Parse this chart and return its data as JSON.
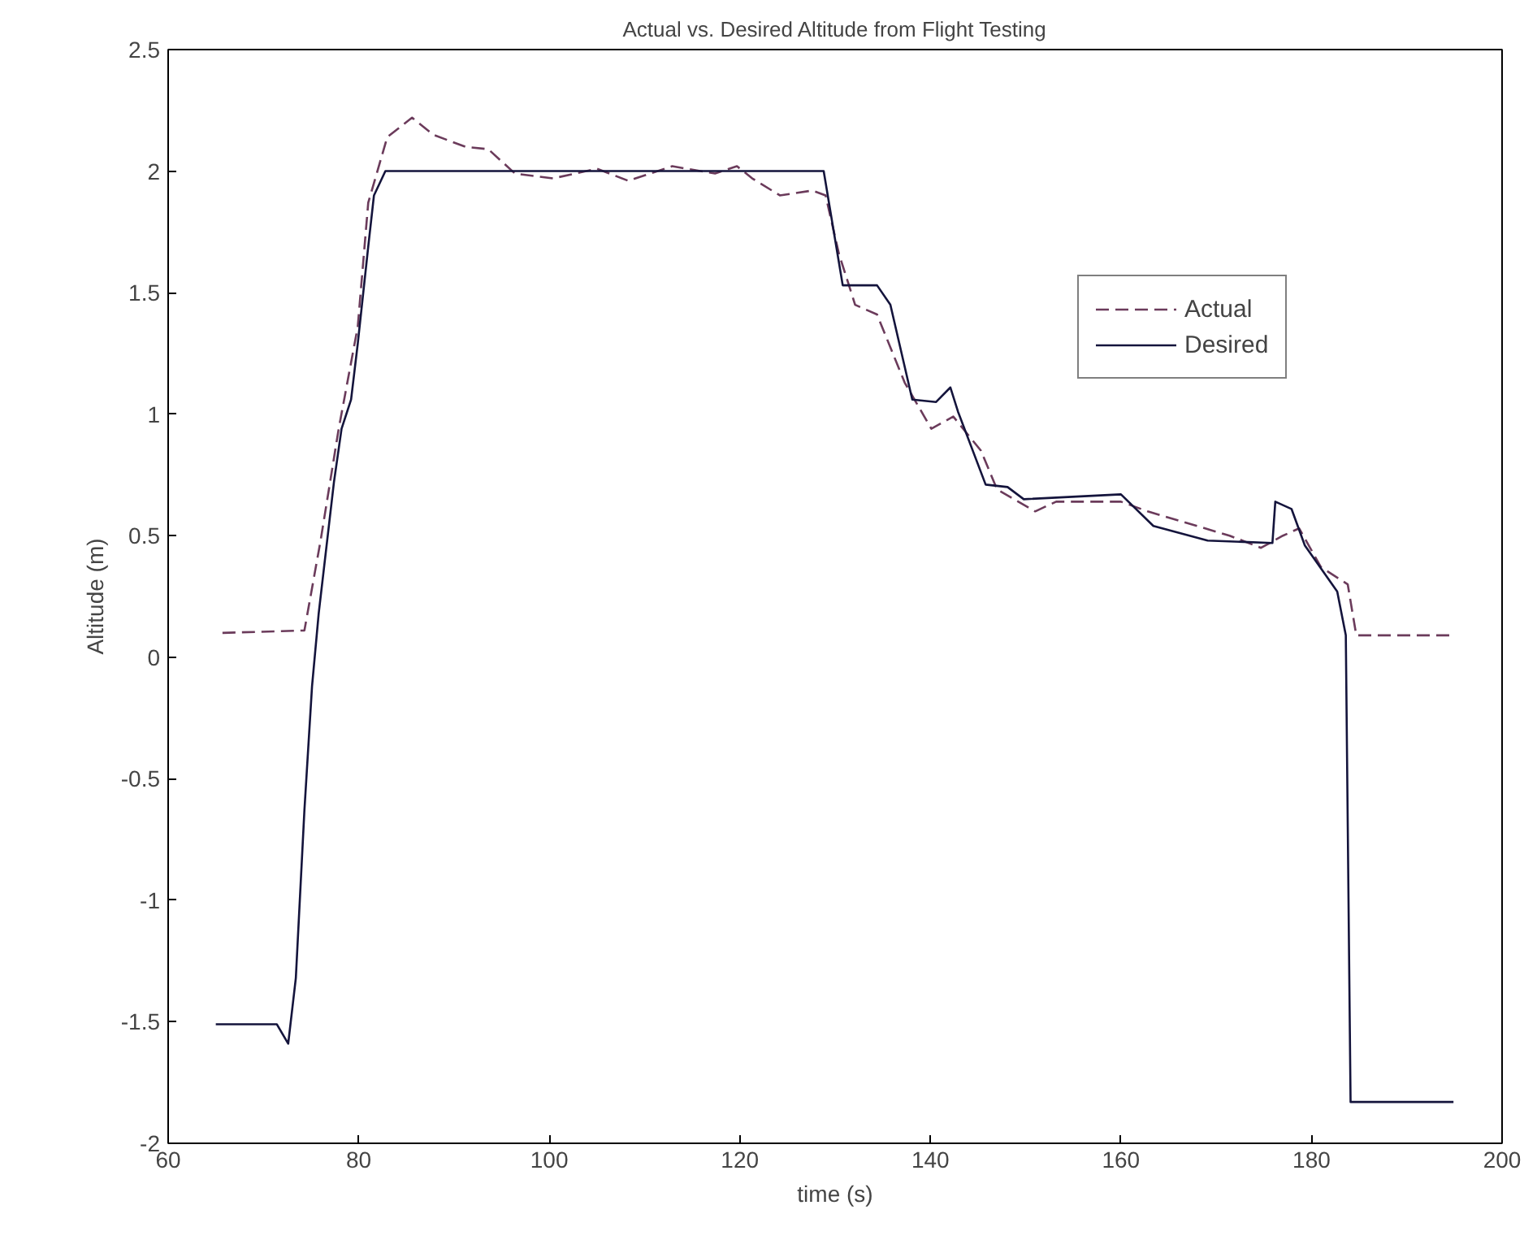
{
  "chart_data": {
    "type": "line",
    "title": "Actual vs. Desired Altitude from Flight Testing",
    "xlabel": "time (s)",
    "ylabel": "Altitude (m)",
    "xlim": [
      60,
      200
    ],
    "xticks": [
      60,
      80,
      100,
      120,
      140,
      160,
      180,
      200
    ],
    "ylim": [
      -2,
      2.5
    ],
    "yticks": [
      -2,
      -1.5,
      -1,
      -0.5,
      0,
      0.5,
      1,
      1.5,
      2,
      2.5
    ],
    "grid": false,
    "legend": "top right",
    "series": [
      {
        "name": "Actual",
        "color": "#6b3b5b",
        "line_style": "dashed",
        "x": [
          65.7,
          74.3,
          76,
          77.9,
          79.9,
          81,
          83,
          85.6,
          87.8,
          91.2,
          93.6,
          96.4,
          100.4,
          105,
          108.3,
          112.9,
          117.4,
          119.7,
          121.3,
          124.2,
          127.6,
          129,
          130.4,
          132.1,
          134.4,
          137.3,
          140.1,
          142.4,
          145.3,
          147,
          151,
          153.2,
          160,
          162.8,
          171.4,
          174.7,
          177,
          178.7,
          181,
          183.8,
          184.7,
          195.1
        ],
        "values": [
          0.1,
          0.11,
          0.48,
          0.94,
          1.36,
          1.87,
          2.14,
          2.22,
          2.15,
          2.1,
          2.09,
          1.99,
          1.97,
          2.01,
          1.96,
          2.02,
          1.99,
          2.02,
          1.97,
          1.9,
          1.92,
          1.9,
          1.66,
          1.45,
          1.41,
          1.13,
          0.94,
          0.99,
          0.85,
          0.69,
          0.6,
          0.64,
          0.64,
          0.6,
          0.5,
          0.45,
          0.5,
          0.53,
          0.37,
          0.3,
          0.09,
          0.09
        ]
      },
      {
        "name": "Desired",
        "color": "#14143c",
        "line_style": "solid",
        "x": [
          65,
          71.4,
          72.6,
          73.4,
          74.3,
          75.1,
          75.8,
          77.4,
          78.2,
          79.2,
          79.9,
          81,
          81.6,
          82.8,
          128.8,
          130.8,
          134.4,
          135.8,
          138.1,
          140.6,
          142.1,
          142.9,
          145.8,
          148.1,
          149.8,
          160,
          163.4,
          169.1,
          175.9,
          176.2,
          177.9,
          179.3,
          182.7,
          183.6,
          184.1,
          194.9
        ],
        "values": [
          -1.51,
          -1.51,
          -1.59,
          -1.32,
          -0.63,
          -0.12,
          0.18,
          0.72,
          0.94,
          1.06,
          1.29,
          1.69,
          1.9,
          2,
          2,
          1.53,
          1.53,
          1.45,
          1.06,
          1.05,
          1.11,
          1.01,
          0.71,
          0.7,
          0.65,
          0.67,
          0.54,
          0.48,
          0.47,
          0.64,
          0.61,
          0.46,
          0.27,
          0.09,
          -1.83,
          -1.83
        ]
      }
    ]
  }
}
